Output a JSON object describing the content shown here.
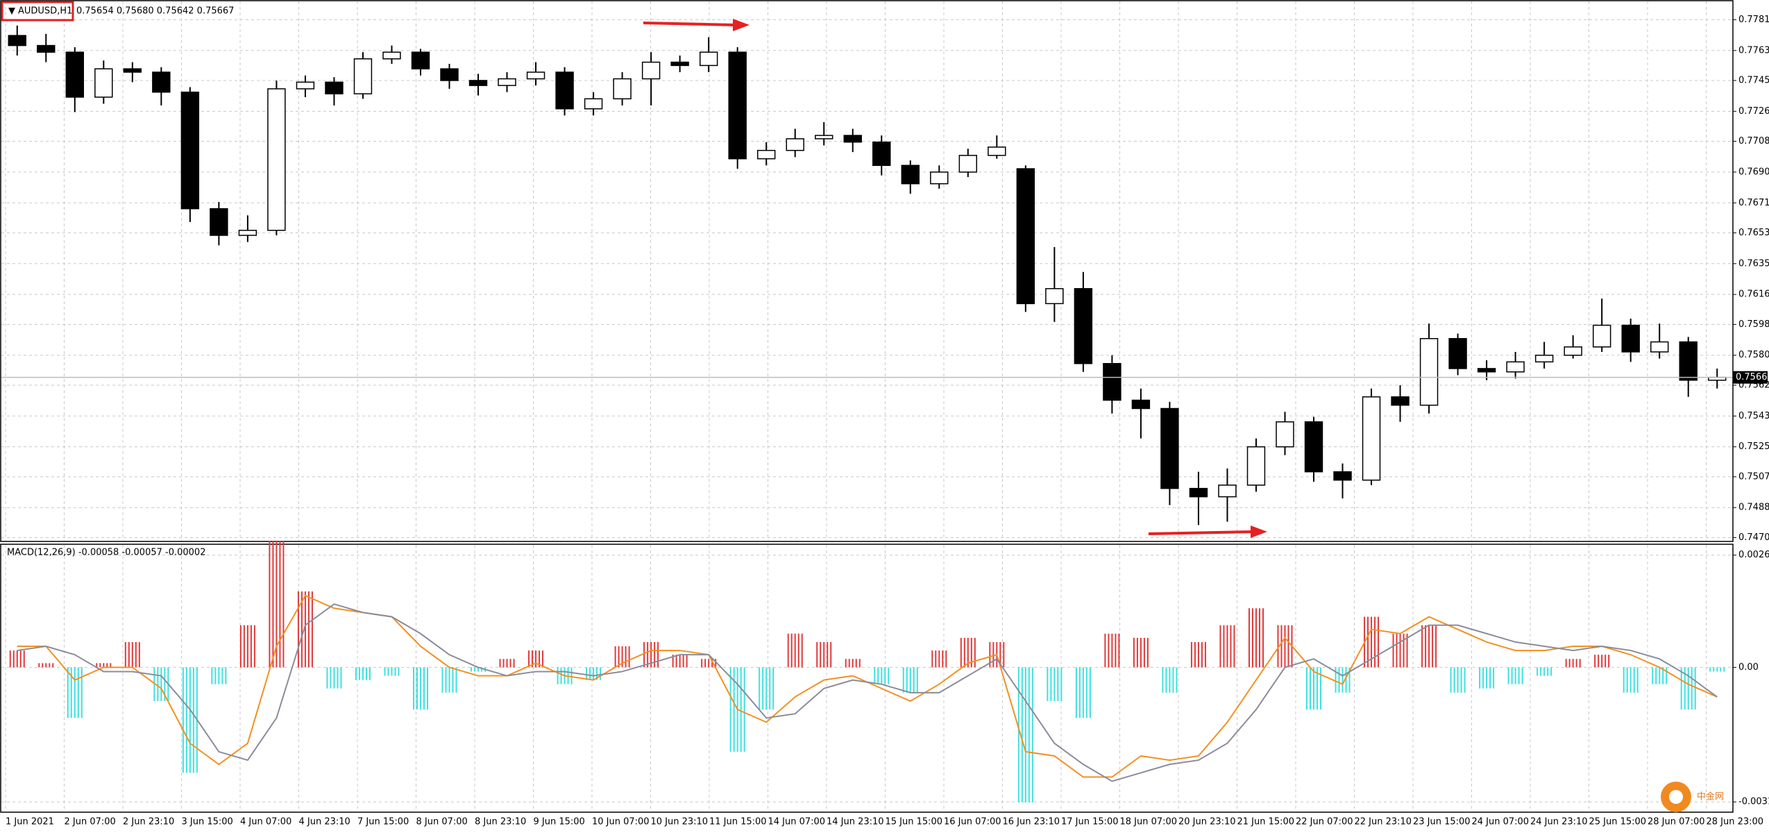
{
  "chart_data": [
    {
      "type": "candlestick",
      "symbol": "AUDUSD,H1",
      "quote": "0.75654 0.75680 0.75642 0.75667",
      "open": [
        0.7772,
        0.7766,
        0.7762,
        0.7735,
        0.7752,
        0.775,
        0.7738,
        0.7668,
        0.7652,
        0.7655,
        0.774,
        0.7744,
        0.7737,
        0.7758,
        0.7762,
        0.7752,
        0.7745,
        0.7742,
        0.7746,
        0.775,
        0.7728,
        0.7734,
        0.7746,
        0.7756,
        0.7754,
        0.7762,
        0.7698,
        0.7703,
        0.771,
        0.7712,
        0.7708,
        0.7694,
        0.7683,
        0.769,
        0.77,
        0.7692,
        0.7611,
        0.762,
        0.7575,
        0.7553,
        0.7548,
        0.75,
        0.7495,
        0.7502,
        0.7525,
        0.754,
        0.751,
        0.7505,
        0.7555,
        0.755,
        0.759,
        0.7572,
        0.757,
        0.7576,
        0.758,
        0.7585,
        0.7598,
        0.7582,
        0.7588,
        0.7565
      ],
      "high": [
        0.7778,
        0.7773,
        0.7765,
        0.7757,
        0.7756,
        0.7753,
        0.7741,
        0.7672,
        0.7664,
        0.7745,
        0.7748,
        0.7747,
        0.7762,
        0.7766,
        0.7764,
        0.7755,
        0.7749,
        0.775,
        0.7756,
        0.7753,
        0.7738,
        0.775,
        0.7762,
        0.776,
        0.7771,
        0.7765,
        0.7708,
        0.7716,
        0.772,
        0.7716,
        0.7712,
        0.7697,
        0.7694,
        0.7704,
        0.7712,
        0.7694,
        0.7645,
        0.763,
        0.758,
        0.756,
        0.7552,
        0.751,
        0.7512,
        0.753,
        0.7546,
        0.7543,
        0.7515,
        0.756,
        0.7562,
        0.7599,
        0.7593,
        0.7577,
        0.7582,
        0.7588,
        0.7592,
        0.7614,
        0.7602,
        0.7599,
        0.7591,
        0.7572
      ],
      "low": [
        0.776,
        0.7756,
        0.7726,
        0.7731,
        0.7744,
        0.773,
        0.766,
        0.7646,
        0.7648,
        0.7652,
        0.7735,
        0.773,
        0.7734,
        0.7755,
        0.7748,
        0.774,
        0.7736,
        0.7738,
        0.7742,
        0.7724,
        0.7724,
        0.773,
        0.773,
        0.775,
        0.775,
        0.7692,
        0.7694,
        0.7699,
        0.7706,
        0.7702,
        0.7688,
        0.7677,
        0.768,
        0.7687,
        0.7698,
        0.7606,
        0.76,
        0.757,
        0.7545,
        0.753,
        0.749,
        0.7478,
        0.748,
        0.7498,
        0.752,
        0.7504,
        0.7494,
        0.7502,
        0.754,
        0.7545,
        0.7568,
        0.7565,
        0.7566,
        0.7572,
        0.7578,
        0.7582,
        0.7576,
        0.7578,
        0.7555,
        0.756
      ],
      "close": [
        0.7766,
        0.7762,
        0.7735,
        0.7752,
        0.775,
        0.7738,
        0.7668,
        0.7652,
        0.7655,
        0.774,
        0.7744,
        0.7737,
        0.7758,
        0.7762,
        0.7752,
        0.7745,
        0.7742,
        0.7746,
        0.775,
        0.7728,
        0.7734,
        0.7746,
        0.7756,
        0.7754,
        0.7762,
        0.7698,
        0.7703,
        0.771,
        0.7712,
        0.7708,
        0.7694,
        0.7683,
        0.769,
        0.77,
        0.7705,
        0.7611,
        0.762,
        0.7575,
        0.7553,
        0.7548,
        0.75,
        0.7495,
        0.7502,
        0.7525,
        0.754,
        0.751,
        0.7505,
        0.7555,
        0.755,
        0.759,
        0.7572,
        0.757,
        0.7576,
        0.758,
        0.7585,
        0.7598,
        0.7582,
        0.7588,
        0.7565,
        0.75667
      ],
      "up_color": "#ffffff",
      "down_color": "#000000",
      "ylim": [
        0.7469,
        0.779
      ],
      "yticks": [
        0.77815,
        {
          "value": 0.7763,
          "label": "0.77630"
        },
        {
          "value": 0.7745,
          "label": "0.77450"
        },
        0.77265,
        0.77085,
        {
          "value": 0.769,
          "label": "0.76900"
        },
        0.76715,
        0.76535,
        {
          "value": 0.7635,
          "label": "0.76350"
        },
        0.76165,
        0.75985,
        {
          "value": 0.758,
          "label": "0.75800"
        },
        {
          "value": 0.7562,
          "label": "0.75620"
        },
        0.75435,
        {
          "value": 0.7525,
          "label": "0.75250"
        },
        {
          "value": 0.7507,
          "label": "0.75070"
        },
        0.74885,
        0.74705
      ],
      "last_price": 0.75667,
      "grid": true
    },
    {
      "type": "macd",
      "title": "MACD(12,26,9) -0.00058 -0.00057 -0.00002",
      "histogram": {
        "up_color": "#e03a3a",
        "down_color": "#3fe0e0",
        "values": [
          0.0004,
          0.0001,
          -0.0012,
          0.0001,
          0.0006,
          -0.0008,
          -0.0025,
          -0.0004,
          0.001,
          0.003,
          0.0018,
          -0.0005,
          -0.0003,
          -0.0002,
          -0.001,
          -0.0006,
          -0.0001,
          0.0002,
          0.0004,
          -0.0004,
          -0.0003,
          0.0005,
          0.0006,
          0.0003,
          0.0002,
          -0.002,
          -0.001,
          0.0008,
          0.0006,
          0.0002,
          -0.0004,
          -0.0006,
          0.0004,
          0.0007,
          0.0006,
          -0.0032,
          -0.0008,
          -0.0012,
          0.0008,
          0.0007,
          -0.0006,
          0.0006,
          0.001,
          0.0014,
          0.001,
          -0.001,
          -0.0006,
          0.0012,
          0.0008,
          0.001,
          -0.0006,
          -0.0005,
          -0.0004,
          -0.0002,
          0.0002,
          0.0003,
          -0.0006,
          -0.0004,
          -0.001,
          -0.0001
        ]
      },
      "series": [
        {
          "color": "#f39020",
          "values": [
            0.0005,
            0.0005,
            -0.0003,
            0,
            0,
            -0.0005,
            -0.0018,
            -0.0023,
            -0.0018,
            0.0005,
            0.0017,
            0.0014,
            0.0013,
            0.0012,
            0.0005,
            0,
            -0.0002,
            -0.0002,
            0.0001,
            -0.0002,
            -0.0003,
            0.0001,
            0.0004,
            0.0004,
            0.0003,
            -0.001,
            -0.0013,
            -0.0007,
            -0.0003,
            -0.0002,
            -0.0005,
            -0.0008,
            -0.0004,
            0.0001,
            0.0003,
            -0.002,
            -0.0021,
            -0.0026,
            -0.0026,
            -0.0021,
            -0.0022,
            -0.0021,
            -0.0013,
            -0.0003,
            0.0007,
            -0.0001,
            -0.0004,
            0.0009,
            0.0008,
            0.0012,
            0.0009,
            0.0006,
            0.0004,
            0.0004,
            0.0005,
            0.0005,
            0.0003,
            0,
            -0.0004,
            -0.0007
          ]
        },
        {
          "color": "#8a8c9c",
          "values": [
            0.0004,
            0.0005,
            0.0003,
            -0.0001,
            -0.0001,
            -0.0002,
            -0.001,
            -0.002,
            -0.0022,
            -0.0012,
            0.001,
            0.0015,
            0.0013,
            0.0012,
            0.0008,
            0.0003,
            0,
            -0.0002,
            -0.0001,
            -0.0001,
            -0.0002,
            -0.0001,
            0.0001,
            0.0003,
            0.0003,
            -0.0004,
            -0.0012,
            -0.0011,
            -0.0005,
            -0.0003,
            -0.0004,
            -0.0006,
            -0.0006,
            -0.0002,
            0.0002,
            -0.0008,
            -0.0018,
            -0.0023,
            -0.0027,
            -0.0025,
            -0.0023,
            -0.0022,
            -0.0018,
            -0.001,
            0,
            0.0002,
            -0.0002,
            0.0002,
            0.0006,
            0.001,
            0.001,
            0.0008,
            0.0006,
            0.0005,
            0.0004,
            0.0005,
            0.0004,
            0.0002,
            -0.0002,
            -0.0007
          ]
        }
      ],
      "ylim": [
        -0.0034,
        0.00282
      ],
      "yticks": [
        0.00266,
        {
          "value": 0,
          "label": "0.00"
        },
        -0.00319
      ],
      "x_labels": [
        "1 Jun 2021",
        "2 Jun 07:00",
        "2 Jun 23:10",
        "3 Jun 15:00",
        "4 Jun 07:00",
        "4 Jun 23:10",
        "7 Jun 15:00",
        "8 Jun 07:00",
        "8 Jun 23:10",
        "9 Jun 15:00",
        "10 Jun 07:00",
        "10 Jun 23:10",
        "11 Jun 15:00",
        "14 Jun 07:00",
        "14 Jun 23:10",
        "15 Jun 15:00",
        "16 Jun 07:00",
        "16 Jun 23:10",
        "17 Jun 15:00",
        "18 Jun 07:00",
        "20 Jun 23:10",
        "21 Jun 15:00",
        "22 Jun 07:00",
        "22 Jun 23:10",
        "23 Jun 15:00",
        "24 Jun 07:00",
        "24 Jun 23:10",
        "25 Jun 15:00",
        "28 Jun 07:00",
        "28 Jun 23:00"
      ]
    }
  ],
  "watermark": "中金网"
}
